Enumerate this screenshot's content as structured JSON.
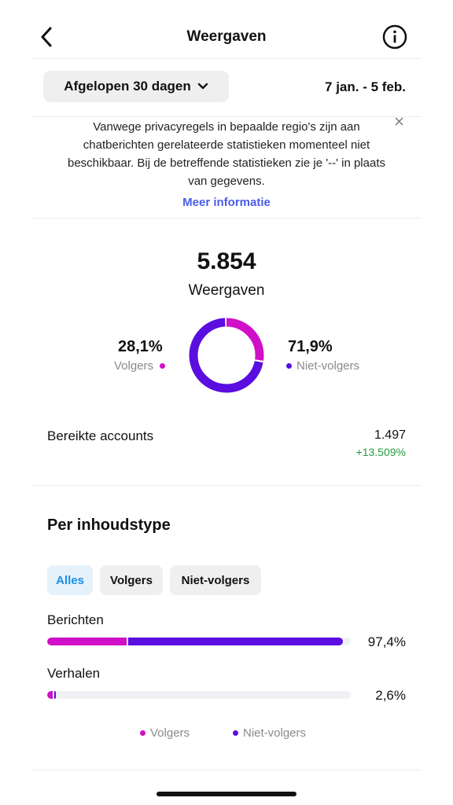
{
  "header": {
    "title": "Weergaven",
    "back_icon": "chevron-left-icon",
    "info_icon": "info-icon"
  },
  "filter": {
    "period_label": "Afgelopen 30 dagen",
    "period_icon": "chevron-down-icon",
    "date_range": "7 jan. - 5 feb."
  },
  "notice": {
    "text": "Vanwege privacyregels in bepaalde regio's zijn aan chatberichten gerelateerde statistieken momenteel niet beschikbaar. Bij de betreffende statistieken zie je '--' in plaats van gegevens.",
    "link": "Meer informatie",
    "close_icon": "close-icon"
  },
  "summary": {
    "total": "5.854",
    "label": "Weergaven",
    "followers_pct": "28,1%",
    "followers_label": "Volgers",
    "followers_value": 28.1,
    "nonfollowers_pct": "71,9%",
    "nonfollowers_label": "Niet-volgers",
    "nonfollowers_value": 71.9
  },
  "reach": {
    "label": "Bereikte accounts",
    "value": "1.497",
    "change": "+13.509%"
  },
  "content_type": {
    "title": "Per inhoudstype",
    "tabs": [
      {
        "label": "Alles",
        "active": true
      },
      {
        "label": "Volgers",
        "active": false
      },
      {
        "label": "Niet-volgers",
        "active": false
      }
    ],
    "rows": [
      {
        "label": "Berichten",
        "pct": "97,4%",
        "total": 97.4,
        "followers_share": 26.5
      },
      {
        "label": "Verhalen",
        "pct": "2,6%",
        "total": 2.6,
        "followers_share": 2.1
      }
    ],
    "legend": [
      "Volgers",
      "Niet-volgers"
    ]
  },
  "colors": {
    "followers": "#d010c8",
    "nonfollowers": "#5a0ee0",
    "link": "#4a5de8",
    "positive": "#2a9a3e",
    "active_chip": "#1a8fe3"
  }
}
